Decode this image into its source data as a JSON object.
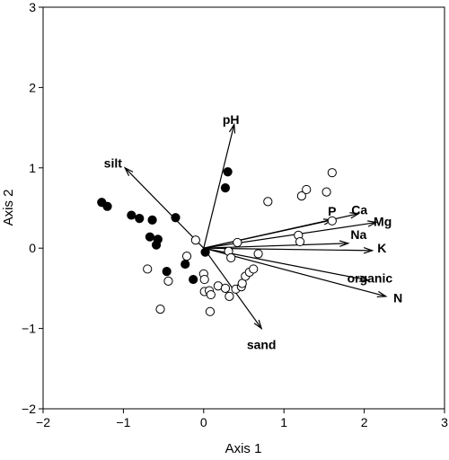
{
  "chart_data": {
    "type": "scatter",
    "xlabel": "Axis 1",
    "ylabel": "Axis 2",
    "xlim": [
      -2,
      3
    ],
    "ylim": [
      -2,
      3
    ],
    "xticks": [
      -2,
      -1,
      0,
      1,
      2,
      3
    ],
    "yticks": [
      -2,
      -1,
      0,
      1,
      2,
      3
    ],
    "xtick_labels": [
      "−2",
      "−1",
      "0",
      "1",
      "2",
      "3"
    ],
    "ytick_labels": [
      "−2",
      "−1",
      "0",
      "1",
      "2",
      "3"
    ],
    "grid": false,
    "series": [
      {
        "marker": "filled-circle",
        "color": "#000000",
        "points": [
          [
            -1.27,
            0.57
          ],
          [
            -1.2,
            0.52
          ],
          [
            -0.9,
            0.41
          ],
          [
            -0.8,
            0.37
          ],
          [
            -0.64,
            0.35
          ],
          [
            -0.67,
            0.14
          ],
          [
            -0.57,
            0.11
          ],
          [
            -0.59,
            0.04
          ],
          [
            -0.35,
            0.38
          ],
          [
            -0.46,
            -0.29
          ],
          [
            -0.23,
            -0.2
          ],
          [
            -0.13,
            -0.39
          ],
          [
            0.02,
            -0.05
          ],
          [
            0.3,
            0.95
          ],
          [
            0.27,
            0.75
          ]
        ]
      },
      {
        "marker": "open-circle",
        "color": "#000000",
        "points": [
          [
            -0.1,
            0.1
          ],
          [
            -0.21,
            -0.1
          ],
          [
            -0.7,
            -0.26
          ],
          [
            -0.44,
            -0.41
          ],
          [
            -0.54,
            -0.76
          ],
          [
            0.0,
            -0.32
          ],
          [
            0.01,
            -0.39
          ],
          [
            0.01,
            -0.54
          ],
          [
            0.07,
            -0.53
          ],
          [
            0.09,
            -0.58
          ],
          [
            0.08,
            -0.79
          ],
          [
            0.18,
            -0.47
          ],
          [
            0.27,
            -0.5
          ],
          [
            0.32,
            -0.6
          ],
          [
            0.4,
            -0.51
          ],
          [
            0.47,
            -0.48
          ],
          [
            0.48,
            -0.44
          ],
          [
            0.52,
            -0.35
          ],
          [
            0.57,
            -0.3
          ],
          [
            0.62,
            -0.26
          ],
          [
            0.31,
            -0.04
          ],
          [
            0.34,
            -0.12
          ],
          [
            0.42,
            0.07
          ],
          [
            0.68,
            -0.07
          ],
          [
            0.8,
            0.58
          ],
          [
            1.22,
            0.65
          ],
          [
            1.28,
            0.73
          ],
          [
            1.53,
            0.7
          ],
          [
            1.6,
            0.94
          ],
          [
            1.18,
            0.16
          ],
          [
            1.2,
            0.08
          ],
          [
            1.6,
            0.34
          ]
        ]
      }
    ],
    "vectors": [
      {
        "label": "pH",
        "x": 0.38,
        "y": 1.54,
        "label_x": 0.34,
        "label_y": 1.6
      },
      {
        "label": "silt",
        "x": -0.98,
        "y": 1.0,
        "label_x": -1.13,
        "label_y": 1.06
      },
      {
        "label": "P",
        "x": 1.6,
        "y": 0.35,
        "label_x": 1.6,
        "label_y": 0.46
      },
      {
        "label": "Ca",
        "x": 1.93,
        "y": 0.43,
        "label_x": 1.94,
        "label_y": 0.48
      },
      {
        "label": "Mg",
        "x": 2.15,
        "y": 0.32,
        "label_x": 2.23,
        "label_y": 0.33
      },
      {
        "label": "Na",
        "x": 1.8,
        "y": 0.06,
        "label_x": 1.93,
        "label_y": 0.17
      },
      {
        "label": "K",
        "x": 2.1,
        "y": -0.03,
        "label_x": 2.22,
        "label_y": 0.0
      },
      {
        "label": "organic",
        "x": 2.05,
        "y": -0.4,
        "label_x": 2.07,
        "label_y": -0.37
      },
      {
        "label": "N",
        "x": 2.27,
        "y": -0.6,
        "label_x": 2.42,
        "label_y": -0.62
      },
      {
        "label": "sand",
        "x": 0.72,
        "y": -1.0,
        "label_x": 0.72,
        "label_y": -1.2
      }
    ]
  }
}
